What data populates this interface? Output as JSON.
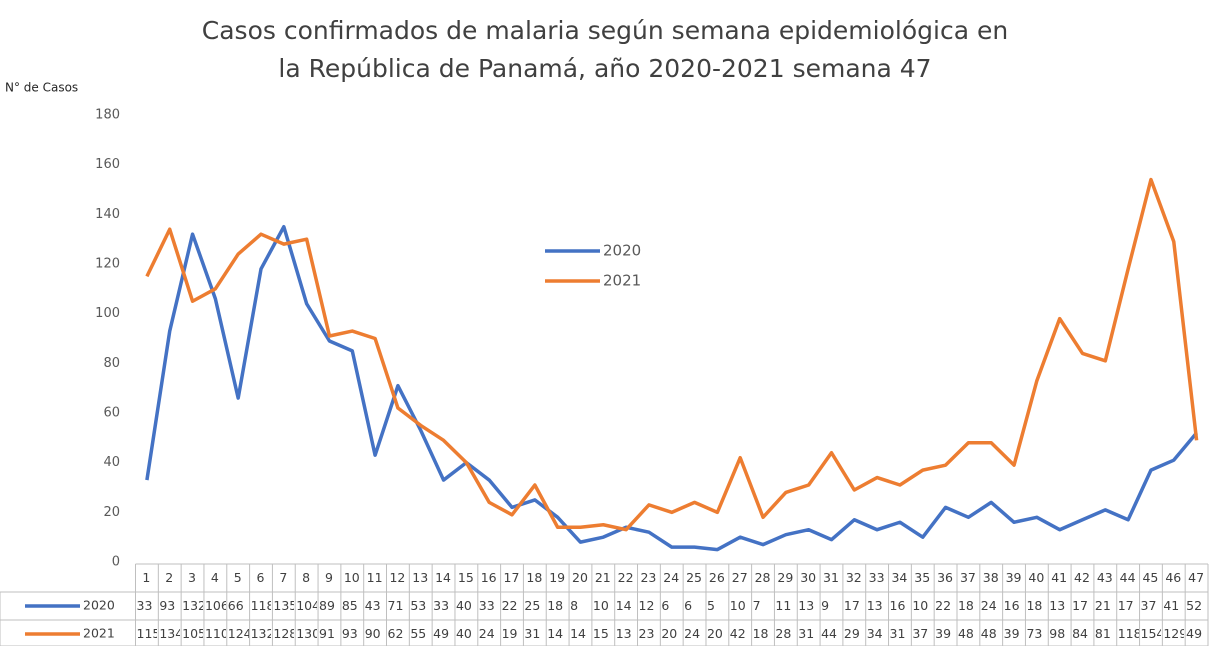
{
  "chart_data": {
    "type": "line",
    "title": [
      "Casos confirmados de malaria según semana epidemiológica en",
      "la República de Panamá, año 2020-2021 semana 47"
    ],
    "y_label": "N° de Casos",
    "categories": [
      1,
      2,
      3,
      4,
      5,
      6,
      7,
      8,
      9,
      10,
      11,
      12,
      13,
      14,
      15,
      16,
      17,
      18,
      19,
      20,
      21,
      22,
      23,
      24,
      25,
      26,
      27,
      28,
      29,
      30,
      31,
      32,
      33,
      34,
      35,
      36,
      37,
      38,
      39,
      40,
      41,
      42,
      43,
      44,
      45,
      46,
      47
    ],
    "series": [
      {
        "name": "2020",
        "color": "#4472c4",
        "values": [
          33,
          93,
          132,
          106,
          66,
          118,
          135,
          104,
          89,
          85,
          43,
          71,
          53,
          33,
          40,
          33,
          22,
          25,
          18,
          8,
          10,
          14,
          12,
          6,
          6,
          5,
          10,
          7,
          11,
          13,
          9,
          17,
          13,
          16,
          10,
          22,
          18,
          24,
          16,
          18,
          13,
          17,
          21,
          17,
          37,
          41,
          52
        ]
      },
      {
        "name": "2021",
        "color": "#ed7d31",
        "values": [
          115,
          134,
          105,
          110,
          124,
          132,
          128,
          130,
          91,
          93,
          90,
          62,
          55,
          49,
          40,
          24,
          19,
          31,
          14,
          14,
          15,
          13,
          23,
          20,
          24,
          20,
          42,
          18,
          28,
          31,
          44,
          29,
          34,
          31,
          37,
          39,
          48,
          48,
          39,
          73,
          98,
          84,
          81,
          118,
          154,
          129,
          49
        ]
      }
    ],
    "ylim": [
      0,
      180
    ],
    "yticks": [
      0,
      20,
      40,
      60,
      80,
      100,
      120,
      140,
      160,
      180
    ],
    "grid": false,
    "legend": "center",
    "data_table": true
  }
}
